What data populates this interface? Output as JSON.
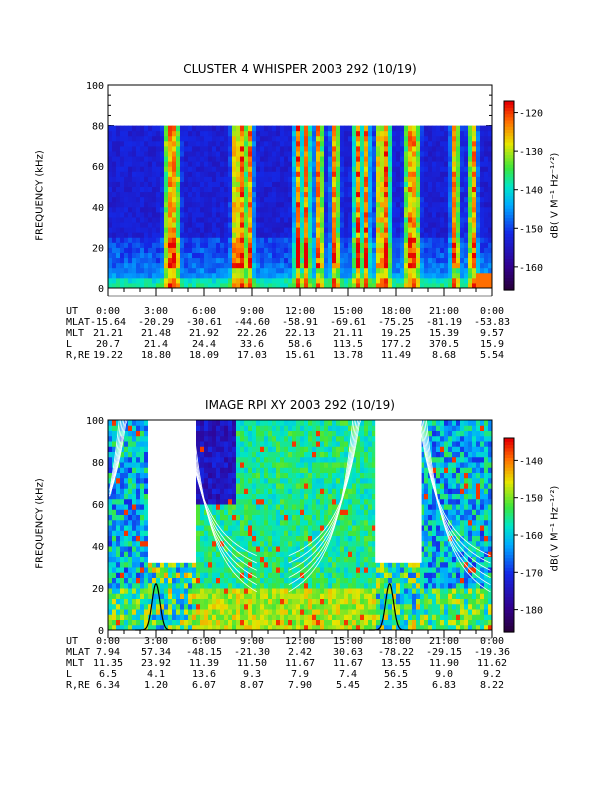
{
  "chart_data": [
    {
      "type": "heatmap",
      "title": "CLUSTER 4 WHISPER 2003 292 (10/19)",
      "ylabel": "FREQUENCY (kHz)",
      "ylim": [
        0,
        100
      ],
      "yticks": [
        "0",
        "20",
        "40",
        "60",
        "80",
        "100"
      ],
      "data_top_khz": 80,
      "colorbar": {
        "label": "dB( V M⁻¹ Hz⁻¹ᐟ²)",
        "range": [
          -166,
          -117
        ],
        "ticks": [
          "-120",
          "-130",
          "-140",
          "-150",
          "-160"
        ]
      },
      "strong_emission_times_h": [
        3.8,
        4.2,
        8.0,
        8.4,
        8.8,
        11.9,
        12.4,
        13.2,
        14.2,
        15.6,
        16.1,
        17.0,
        17.4,
        18.8,
        19.2,
        21.7,
        22.8
      ],
      "ephemeris": {
        "headers": [
          "UT",
          "MLAT",
          "MLT",
          "L",
          "R,RE"
        ],
        "rows": [
          [
            "0:00",
            "3:00",
            "6:00",
            "9:00",
            "12:00",
            "15:00",
            "18:00",
            "21:00",
            "0:00"
          ],
          [
            "-15.64",
            "-20.29",
            "-30.61",
            "-44.60",
            "-58.91",
            "-69.61",
            "-75.25",
            "-81.19",
            "-53.83"
          ],
          [
            "21.21",
            "21.48",
            "21.92",
            "22.26",
            "22.13",
            "21.11",
            "19.25",
            "15.39",
            "9.57"
          ],
          [
            "20.7",
            "21.4",
            "24.4",
            "33.6",
            "58.6",
            "113.5",
            "177.2",
            "370.5",
            "15.9"
          ],
          [
            "19.22",
            "18.80",
            "18.09",
            "17.03",
            "15.61",
            "13.78",
            "11.49",
            "8.68",
            "5.54"
          ]
        ]
      }
    },
    {
      "type": "heatmap",
      "title": "IMAGE RPI XY 2003 292 (10/19)",
      "ylabel": "FREQUENCY (kHz)",
      "ylim": [
        0,
        100
      ],
      "yticks": [
        "0",
        "20",
        "40",
        "60",
        "80",
        "100"
      ],
      "data_gaps_h": [
        [
          2.5,
          5.5
        ],
        [
          16.7,
          19.6
        ]
      ],
      "reduced_gap_top_khz": 32,
      "colorbar": {
        "label": "dB( V M⁻¹ Hz⁻¹ᐟ²)",
        "range": [
          -186,
          -134
        ],
        "ticks": [
          "-140",
          "-150",
          "-160",
          "-170",
          "-180"
        ]
      },
      "overlay_curves": "plasma resonance curves (white) and black peaks near 3:00 and 17:40",
      "ephemeris": {
        "headers": [
          "UT",
          "MLAT",
          "MLT",
          "L",
          "R,RE"
        ],
        "rows": [
          [
            "0:00",
            "3:00",
            "6:00",
            "9:00",
            "12:00",
            "15:00",
            "18:00",
            "21:00",
            "0:00"
          ],
          [
            "7.94",
            "57.34",
            "-48.15",
            "-21.30",
            "2.42",
            "30.63",
            "-78.22",
            "-29.15",
            "-19.36"
          ],
          [
            "11.35",
            "23.92",
            "11.39",
            "11.50",
            "11.67",
            "11.67",
            "13.55",
            "11.90",
            "11.62"
          ],
          [
            "6.5",
            "4.1",
            "13.6",
            "9.3",
            "7.9",
            "7.4",
            "56.5",
            "9.0",
            "9.2"
          ],
          [
            "6.34",
            "1.20",
            "6.07",
            "8.07",
            "7.90",
            "5.45",
            "2.35",
            "6.83",
            "8.22"
          ]
        ]
      }
    }
  ]
}
